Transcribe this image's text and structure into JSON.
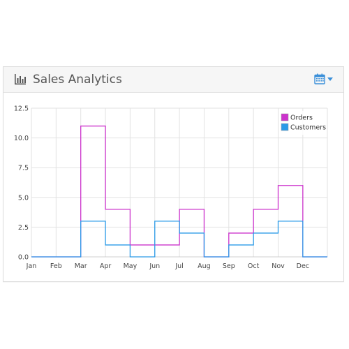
{
  "panel": {
    "title": "Sales Analytics",
    "title_icon": "bar-chart-icon",
    "action_icon": "calendar-icon",
    "action_caret_icon": "caret-down-icon",
    "accent_color": "#3a8fd9"
  },
  "chart_data": {
    "type": "line",
    "step": true,
    "categories": [
      "Jan",
      "Feb",
      "Mar",
      "Apr",
      "May",
      "Jun",
      "Jul",
      "Aug",
      "Sep",
      "Oct",
      "Nov",
      "Dec"
    ],
    "ylim": [
      0,
      12.5
    ],
    "yticks": [
      "0.0",
      "2.5",
      "5.0",
      "7.5",
      "10.0",
      "12.5"
    ],
    "grid": true,
    "legend_position": "top-right",
    "series": [
      {
        "name": "Orders",
        "color": "#cc33cc",
        "values": [
          0,
          0,
          11,
          4,
          1,
          1,
          4,
          0,
          2,
          4,
          6,
          0
        ]
      },
      {
        "name": "Customers",
        "color": "#2b9be8",
        "values": [
          0,
          0,
          3,
          1,
          0,
          3,
          2,
          0,
          1,
          2,
          3,
          0
        ]
      }
    ]
  }
}
